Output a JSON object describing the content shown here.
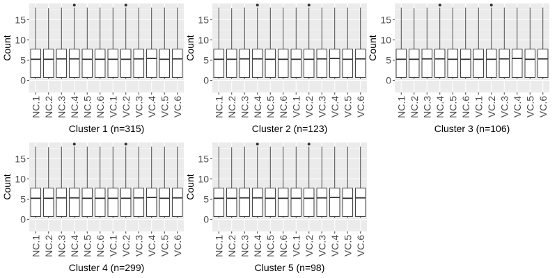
{
  "chart_data": [
    {
      "type": "boxplot",
      "xlabel": "Cluster 1 (n=315)",
      "ylabel": "Count",
      "ylim": [
        -3,
        19
      ],
      "yticks": [
        0,
        5,
        10,
        15
      ],
      "categories": [
        "NC.1",
        "NC.2",
        "NC.3",
        "NC.4",
        "NC.5",
        "NC.6",
        "VC.1",
        "VC.2",
        "VC.3",
        "VC.4",
        "VC.5",
        "VC.6"
      ],
      "boxes": [
        {
          "min": 0.3,
          "q1": 0.7,
          "median": 5.2,
          "q3": 7.7,
          "max": 18
        },
        {
          "min": 0.3,
          "q1": 0.7,
          "median": 5.2,
          "q3": 7.7,
          "max": 17.8
        },
        {
          "min": 0.3,
          "q1": 0.7,
          "median": 5.3,
          "q3": 7.7,
          "max": 18
        },
        {
          "min": 0.3,
          "q1": 0.7,
          "median": 5.3,
          "q3": 7.7,
          "max": 18,
          "outliers": [
            18.6
          ]
        },
        {
          "min": 0.3,
          "q1": 0.7,
          "median": 5.2,
          "q3": 7.7,
          "max": 18
        },
        {
          "min": 0.3,
          "q1": 0.7,
          "median": 5.2,
          "q3": 7.7,
          "max": 18
        },
        {
          "min": 0.3,
          "q1": 0.7,
          "median": 5.2,
          "q3": 7.7,
          "max": 18
        },
        {
          "min": 0.3,
          "q1": 0.7,
          "median": 5.2,
          "q3": 7.7,
          "max": 18,
          "outliers": [
            18.6
          ]
        },
        {
          "min": 0.3,
          "q1": 0.7,
          "median": 5.3,
          "q3": 7.7,
          "max": 18
        },
        {
          "min": 0.3,
          "q1": 0.7,
          "median": 5.4,
          "q3": 7.7,
          "max": 18
        },
        {
          "min": 0.3,
          "q1": 0.7,
          "median": 5.2,
          "q3": 7.7,
          "max": 18
        },
        {
          "min": 0.3,
          "q1": 0.7,
          "median": 5.3,
          "q3": 7.7,
          "max": 18
        }
      ]
    },
    {
      "type": "boxplot",
      "xlabel": "Cluster 2 (n=123)",
      "ylabel": "Count",
      "ylim": [
        -3,
        19
      ],
      "yticks": [
        0,
        5,
        10,
        15
      ],
      "categories": [
        "NC.1",
        "NC.2",
        "NC.3",
        "NC.4",
        "NC.5",
        "NC.6",
        "VC.1",
        "VC.2",
        "VC.3",
        "VC.4",
        "VC.5",
        "VC.6"
      ],
      "boxes": [
        {
          "min": 0.3,
          "q1": 0.7,
          "median": 5.2,
          "q3": 7.7,
          "max": 18
        },
        {
          "min": 0.3,
          "q1": 0.7,
          "median": 5.2,
          "q3": 7.7,
          "max": 17.8
        },
        {
          "min": 0.3,
          "q1": 0.7,
          "median": 5.3,
          "q3": 7.7,
          "max": 18
        },
        {
          "min": 0.3,
          "q1": 0.7,
          "median": 5.3,
          "q3": 7.7,
          "max": 18,
          "outliers": [
            18.6
          ]
        },
        {
          "min": 0.3,
          "q1": 0.7,
          "median": 5.2,
          "q3": 7.7,
          "max": 18
        },
        {
          "min": 0.3,
          "q1": 0.7,
          "median": 5.2,
          "q3": 7.7,
          "max": 18
        },
        {
          "min": 0.3,
          "q1": 0.7,
          "median": 5.2,
          "q3": 7.7,
          "max": 18
        },
        {
          "min": 0.3,
          "q1": 0.7,
          "median": 5.2,
          "q3": 7.7,
          "max": 18,
          "outliers": [
            18.6
          ]
        },
        {
          "min": 0.3,
          "q1": 0.7,
          "median": 5.3,
          "q3": 7.7,
          "max": 18
        },
        {
          "min": 0.3,
          "q1": 0.7,
          "median": 5.4,
          "q3": 7.7,
          "max": 18
        },
        {
          "min": 0.3,
          "q1": 0.7,
          "median": 5.2,
          "q3": 7.7,
          "max": 18
        },
        {
          "min": 0.3,
          "q1": 0.7,
          "median": 5.3,
          "q3": 7.7,
          "max": 18
        }
      ]
    },
    {
      "type": "boxplot",
      "xlabel": "Cluster 3 (n=106)",
      "ylabel": "Count",
      "ylim": [
        -3,
        19
      ],
      "yticks": [
        0,
        5,
        10,
        15
      ],
      "categories": [
        "NC.1",
        "NC.2",
        "NC.3",
        "NC.4",
        "NC.5",
        "NC.6",
        "VC.1",
        "VC.2",
        "VC.3",
        "VC.4",
        "VC.5",
        "VC.6"
      ],
      "boxes": [
        {
          "min": 0.3,
          "q1": 0.7,
          "median": 5.2,
          "q3": 7.7,
          "max": 18
        },
        {
          "min": 0.3,
          "q1": 0.7,
          "median": 5.2,
          "q3": 7.7,
          "max": 17.8
        },
        {
          "min": 0.3,
          "q1": 0.7,
          "median": 5.3,
          "q3": 7.7,
          "max": 18
        },
        {
          "min": 0.3,
          "q1": 0.7,
          "median": 5.3,
          "q3": 7.7,
          "max": 18,
          "outliers": [
            18.6
          ]
        },
        {
          "min": 0.3,
          "q1": 0.7,
          "median": 5.2,
          "q3": 7.7,
          "max": 18
        },
        {
          "min": 0.3,
          "q1": 0.7,
          "median": 5.2,
          "q3": 7.7,
          "max": 18
        },
        {
          "min": 0.3,
          "q1": 0.7,
          "median": 5.2,
          "q3": 7.7,
          "max": 18
        },
        {
          "min": 0.3,
          "q1": 0.7,
          "median": 5.2,
          "q3": 7.7,
          "max": 18,
          "outliers": [
            18.6
          ]
        },
        {
          "min": 0.3,
          "q1": 0.7,
          "median": 5.3,
          "q3": 7.7,
          "max": 18
        },
        {
          "min": 0.3,
          "q1": 0.7,
          "median": 5.4,
          "q3": 7.7,
          "max": 18
        },
        {
          "min": 0.3,
          "q1": 0.7,
          "median": 5.2,
          "q3": 7.7,
          "max": 18
        },
        {
          "min": 0.3,
          "q1": 0.7,
          "median": 5.3,
          "q3": 7.7,
          "max": 18
        }
      ]
    },
    {
      "type": "boxplot",
      "xlabel": "Cluster 4 (n=299)",
      "ylabel": "Count",
      "ylim": [
        -3,
        19
      ],
      "yticks": [
        0,
        5,
        10,
        15
      ],
      "categories": [
        "NC.1",
        "NC.2",
        "NC.3",
        "NC.4",
        "NC.5",
        "NC.6",
        "VC.1",
        "VC.2",
        "VC.3",
        "VC.4",
        "VC.5",
        "VC.6"
      ],
      "boxes": [
        {
          "min": 0.3,
          "q1": 0.7,
          "median": 5.2,
          "q3": 7.7,
          "max": 18
        },
        {
          "min": 0.3,
          "q1": 0.7,
          "median": 5.2,
          "q3": 7.7,
          "max": 17.8
        },
        {
          "min": 0.3,
          "q1": 0.7,
          "median": 5.3,
          "q3": 7.7,
          "max": 18
        },
        {
          "min": 0.3,
          "q1": 0.7,
          "median": 5.3,
          "q3": 7.7,
          "max": 18,
          "outliers": [
            18.6
          ]
        },
        {
          "min": 0.3,
          "q1": 0.7,
          "median": 5.2,
          "q3": 7.7,
          "max": 18
        },
        {
          "min": 0.3,
          "q1": 0.7,
          "median": 5.2,
          "q3": 7.7,
          "max": 18
        },
        {
          "min": 0.3,
          "q1": 0.7,
          "median": 5.2,
          "q3": 7.7,
          "max": 18
        },
        {
          "min": 0.3,
          "q1": 0.7,
          "median": 5.2,
          "q3": 7.7,
          "max": 18,
          "outliers": [
            18.6
          ]
        },
        {
          "min": 0.3,
          "q1": 0.7,
          "median": 5.3,
          "q3": 7.7,
          "max": 18
        },
        {
          "min": 0.3,
          "q1": 0.7,
          "median": 5.4,
          "q3": 7.7,
          "max": 18
        },
        {
          "min": 0.3,
          "q1": 0.7,
          "median": 5.2,
          "q3": 7.7,
          "max": 18
        },
        {
          "min": 0.3,
          "q1": 0.7,
          "median": 5.3,
          "q3": 7.7,
          "max": 18
        }
      ]
    },
    {
      "type": "boxplot",
      "xlabel": "Cluster 5 (n=98)",
      "ylabel": "Count",
      "ylim": [
        -3,
        19
      ],
      "yticks": [
        0,
        5,
        10,
        15
      ],
      "categories": [
        "NC.1",
        "NC.2",
        "NC.3",
        "NC.4",
        "NC.5",
        "NC.6",
        "VC.1",
        "VC.2",
        "VC.3",
        "VC.4",
        "VC.5",
        "VC.6"
      ],
      "boxes": [
        {
          "min": 0.3,
          "q1": 0.7,
          "median": 5.2,
          "q3": 7.7,
          "max": 18
        },
        {
          "min": 0.3,
          "q1": 0.7,
          "median": 5.2,
          "q3": 7.7,
          "max": 17.8
        },
        {
          "min": 0.3,
          "q1": 0.7,
          "median": 5.3,
          "q3": 7.7,
          "max": 18
        },
        {
          "min": 0.3,
          "q1": 0.7,
          "median": 5.3,
          "q3": 7.7,
          "max": 18,
          "outliers": [
            18.6
          ]
        },
        {
          "min": 0.3,
          "q1": 0.7,
          "median": 5.2,
          "q3": 7.7,
          "max": 18
        },
        {
          "min": 0.3,
          "q1": 0.7,
          "median": 5.2,
          "q3": 7.7,
          "max": 18
        },
        {
          "min": 0.3,
          "q1": 0.7,
          "median": 5.2,
          "q3": 7.7,
          "max": 18
        },
        {
          "min": 0.3,
          "q1": 0.7,
          "median": 5.2,
          "q3": 7.7,
          "max": 18,
          "outliers": [
            18.6
          ]
        },
        {
          "min": 0.3,
          "q1": 0.7,
          "median": 5.3,
          "q3": 7.7,
          "max": 18
        },
        {
          "min": 0.3,
          "q1": 0.7,
          "median": 5.4,
          "q3": 7.7,
          "max": 18
        },
        {
          "min": 0.3,
          "q1": 0.7,
          "median": 5.2,
          "q3": 7.7,
          "max": 18
        },
        {
          "min": 0.3,
          "q1": 0.7,
          "median": 5.3,
          "q3": 7.7,
          "max": 18
        }
      ]
    }
  ],
  "style": {
    "panel_bg": "#ebebeb",
    "grid_major": "#ffffff",
    "box_fill": "#ffffff",
    "box_stroke": "#333333",
    "text_color": "#4d4d4d",
    "title_color": "#000000"
  }
}
